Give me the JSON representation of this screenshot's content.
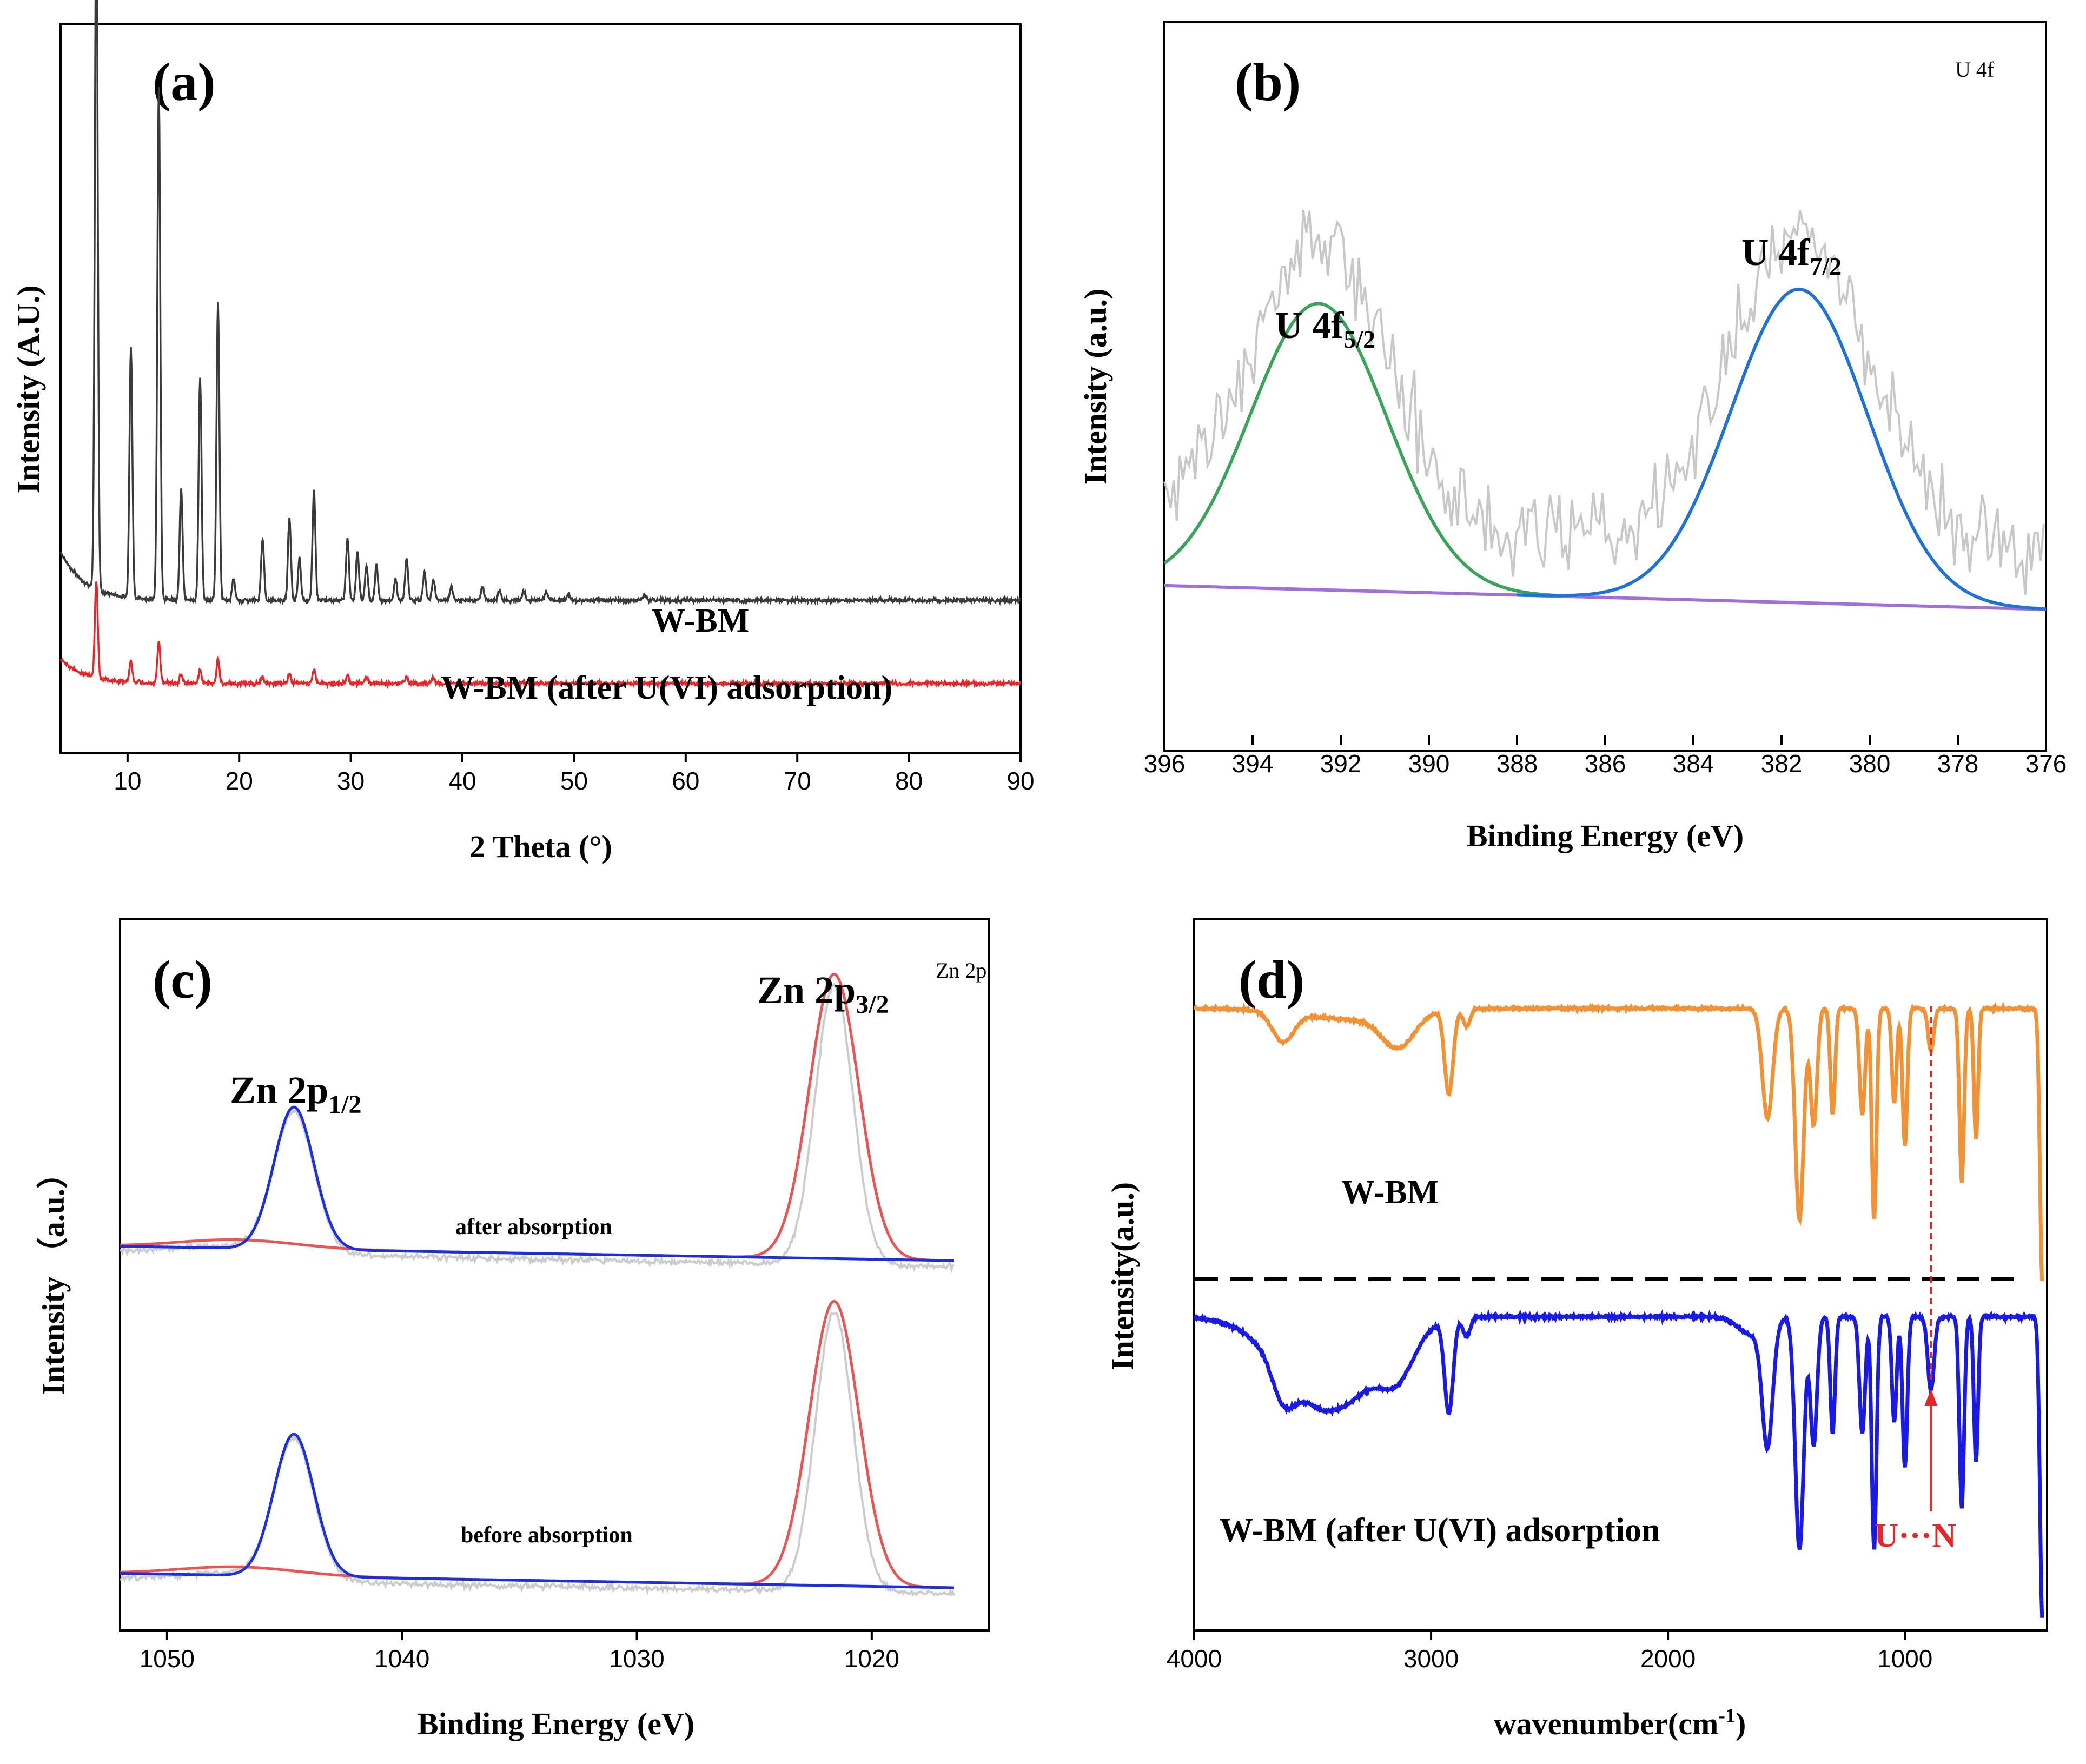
{
  "chart_data": [
    {
      "panel": "(a)",
      "type": "line",
      "title": "(a)",
      "xlabel": "2 Theta (°)",
      "ylabel": "Intensity (A.U.)",
      "xlim": [
        4,
        90
      ],
      "x_ticks": [
        10,
        20,
        30,
        40,
        50,
        60,
        70,
        80,
        90
      ],
      "y_ticks": [],
      "series": [
        {
          "name": "W-BM",
          "color": "#3a3a3a",
          "baseline": 0.22,
          "peaks": [
            [
              7.2,
              1.0
            ],
            [
              10.3,
              0.36
            ],
            [
              12.8,
              0.74
            ],
            [
              14.8,
              0.16
            ],
            [
              16.5,
              0.32
            ],
            [
              18.1,
              0.43
            ],
            [
              19.5,
              0.03
            ],
            [
              22.1,
              0.09
            ],
            [
              24.5,
              0.12
            ],
            [
              25.4,
              0.06
            ],
            [
              26.7,
              0.16
            ],
            [
              29.7,
              0.09
            ],
            [
              30.6,
              0.07
            ],
            [
              31.4,
              0.05
            ],
            [
              32.3,
              0.05
            ],
            [
              34.0,
              0.03
            ],
            [
              35.0,
              0.06
            ],
            [
              36.6,
              0.04
            ],
            [
              37.4,
              0.03
            ],
            [
              39.0,
              0.02
            ],
            [
              41.8,
              0.02
            ],
            [
              43.3,
              0.015
            ],
            [
              45.5,
              0.015
            ],
            [
              47.5,
              0.012
            ],
            [
              49.5,
              0.01
            ],
            [
              56.3,
              0.008
            ]
          ]
        },
        {
          "name": "W-BM (after U(VI) adsorption)",
          "color": "#e8262a",
          "baseline": 0.1,
          "peaks": [
            [
              7.2,
              0.14
            ],
            [
              10.3,
              0.03
            ],
            [
              12.8,
              0.06
            ],
            [
              14.8,
              0.015
            ],
            [
              16.5,
              0.02
            ],
            [
              18.1,
              0.035
            ],
            [
              22.1,
              0.01
            ],
            [
              24.5,
              0.015
            ],
            [
              26.7,
              0.02
            ],
            [
              29.7,
              0.012
            ],
            [
              31.4,
              0.01
            ],
            [
              35.0,
              0.01
            ],
            [
              37.4,
              0.008
            ]
          ]
        }
      ],
      "annotations": [
        "W-BM",
        "W-BM (after U(VI) adsorption)"
      ]
    },
    {
      "panel": "(b)",
      "type": "line",
      "title": "(b)",
      "corner_note": "U 4f",
      "xlabel": "Binding Energy (eV)",
      "ylabel": "Intensity (a.u.)",
      "xlim": [
        396,
        376
      ],
      "x_ticks": [
        396,
        394,
        392,
        390,
        388,
        386,
        384,
        382,
        380,
        378,
        376
      ],
      "series": [
        {
          "name": "raw",
          "color": "#c8c8c8"
        },
        {
          "name": "U 4f5/2 fit",
          "color": "#3aa55a",
          "center": 392.5,
          "height": 0.42,
          "sigma": 1.55
        },
        {
          "name": "U 4f7/2 fit",
          "color": "#1e72d8",
          "center": 381.6,
          "height": 0.46,
          "sigma": 1.55
        },
        {
          "name": "background",
          "color": "#a070d8",
          "start": 0.22,
          "end": 0.185
        }
      ],
      "peak_labels": [
        {
          "main": "U 4f",
          "sub": "5/2"
        },
        {
          "main": "U 4f",
          "sub": "7/2"
        }
      ]
    },
    {
      "panel": "(c)",
      "type": "line",
      "title": "(c)",
      "corner_note": "Zn 2p",
      "xlabel": "Binding Energy (eV)",
      "ylabel": "Intensity （a.u.）",
      "xlim": [
        1052,
        1015
      ],
      "x_ticks": [
        1050,
        1040,
        1030,
        1020
      ],
      "series": [
        {
          "name": "after absorption",
          "offset": 0.52,
          "peaks": [
            [
              1044.6,
              0.2
            ],
            [
              1021.6,
              0.4
            ]
          ]
        },
        {
          "name": "before absorption",
          "offset": 0.06,
          "peaks": [
            [
              1044.6,
              0.2
            ],
            [
              1021.6,
              0.4
            ]
          ]
        }
      ],
      "peak_labels": [
        {
          "main": "Zn 2p",
          "sub": "1/2"
        },
        {
          "main": "Zn 2p",
          "sub": "3/2"
        }
      ],
      "annotations": [
        "after absorption",
        "before absorption"
      ]
    },
    {
      "panel": "(d)",
      "type": "line",
      "title": "(d)",
      "xlabel": "wavenumber(cm",
      "xlabel_sup": "-1",
      "xlabel_end": ")",
      "ylabel": "Intensity(a.u.)",
      "xlim": [
        4000,
        400
      ],
      "x_ticks": [
        4000,
        3000,
        2000,
        1000
      ],
      "series": [
        {
          "name": "W-BM",
          "color": "#f39234"
        },
        {
          "name": "W-BM (after U(VI) adsorption",
          "color": "#1a1ae6"
        }
      ],
      "annotation": {
        "text": "U···N",
        "color": "#e8262a",
        "wavenumber": 890
      }
    }
  ]
}
